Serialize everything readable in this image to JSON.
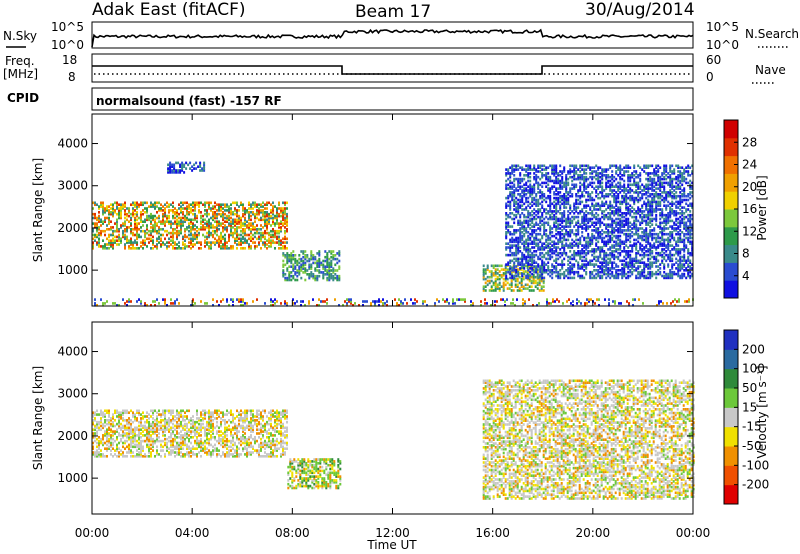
{
  "header": {
    "radar": "Adak East (fitACF)",
    "beam": "Beam 17",
    "date": "30/Aug/2014"
  },
  "top_panels": {
    "nsky_label": "N.Sky",
    "nsky_ticks": [
      "10^5",
      "10^0"
    ],
    "nsearch_label": "N.Search",
    "freq_label": "Freq.",
    "freq_unit": "[MHz]",
    "freq_ticks": [
      "18",
      "8"
    ],
    "nave_ticks": [
      "60",
      "0"
    ],
    "nave_label": "Nave",
    "cpid_label": "CPID",
    "cpid_text": "normalsound (fast) -157 RF"
  },
  "colors": {
    "power_scale": [
      "#1010e0",
      "#2a4cd0",
      "#3a8a8a",
      "#2e9a4a",
      "#7cc83c",
      "#f0d000",
      "#f0a000",
      "#f07000",
      "#e03000",
      "#d00000"
    ],
    "velocity_scale": [
      "#2030c0",
      "#2a6aa0",
      "#2f8a3a",
      "#6cc83a",
      "#c8c8c8",
      "#f0e000",
      "#f09000",
      "#f05000",
      "#e00000"
    ]
  },
  "chart_data": [
    {
      "type": "heatmap",
      "title": "",
      "ylabel": "Slant Range [km]",
      "xlabel": "",
      "xlim": [
        "00:00",
        "24:00"
      ],
      "ylim": [
        150,
        4700
      ],
      "yticks": [
        "1000",
        "2000",
        "3000",
        "4000"
      ],
      "colorbar_label": "Power [dB]",
      "colorbar_ticks": [
        "4",
        "8",
        "12",
        "16",
        "20",
        "24",
        "28"
      ],
      "colorbar_range": [
        0,
        30
      ],
      "grid": false,
      "echo_regions": [
        {
          "t_start": 0.0,
          "t_end": 7.8,
          "range_low": 1500,
          "range_high": 2600,
          "level": "medium-high"
        },
        {
          "t_start": 3.0,
          "t_end": 4.5,
          "range_low": 3300,
          "range_high": 3550,
          "level": "low"
        },
        {
          "t_start": 7.6,
          "t_end": 9.9,
          "range_low": 750,
          "range_high": 1450,
          "level": "low-medium"
        },
        {
          "t_start": 15.6,
          "t_end": 18.0,
          "range_low": 500,
          "range_high": 1100,
          "level": "medium"
        },
        {
          "t_start": 16.5,
          "t_end": 24.0,
          "range_low": 800,
          "range_high": 3500,
          "level": "low"
        },
        {
          "t_start": 0.0,
          "t_end": 24.0,
          "range_low": 150,
          "range_high": 300,
          "level": "low-scattered"
        }
      ]
    },
    {
      "type": "heatmap",
      "title": "",
      "ylabel": "Slant Range [km]",
      "xlabel": "Time UT",
      "xticks": [
        "00:00",
        "04:00",
        "08:00",
        "12:00",
        "16:00",
        "20:00",
        "00:00"
      ],
      "xlim": [
        "00:00",
        "24:00"
      ],
      "ylim": [
        150,
        4700
      ],
      "yticks": [
        "1000",
        "2000",
        "3000",
        "4000"
      ],
      "colorbar_label": "Velocity [m s⁻¹]",
      "colorbar_ticks": [
        "200",
        "100",
        "50",
        "15",
        "-15",
        "-50",
        "-100",
        "-200"
      ],
      "colorbar_range": [
        -300,
        300
      ],
      "grid": false,
      "echo_regions": [
        {
          "t_start": 0.0,
          "t_end": 7.8,
          "range_low": 1500,
          "range_high": 2600,
          "velocity": "near-zero ground scatter"
        },
        {
          "t_start": 7.8,
          "t_end": 9.9,
          "range_low": 750,
          "range_high": 1450,
          "velocity": "15 to 50 positive"
        },
        {
          "t_start": 15.6,
          "t_end": 24.0,
          "range_low": 500,
          "range_high": 3300,
          "velocity": "near-zero ground scatter"
        }
      ]
    }
  ]
}
